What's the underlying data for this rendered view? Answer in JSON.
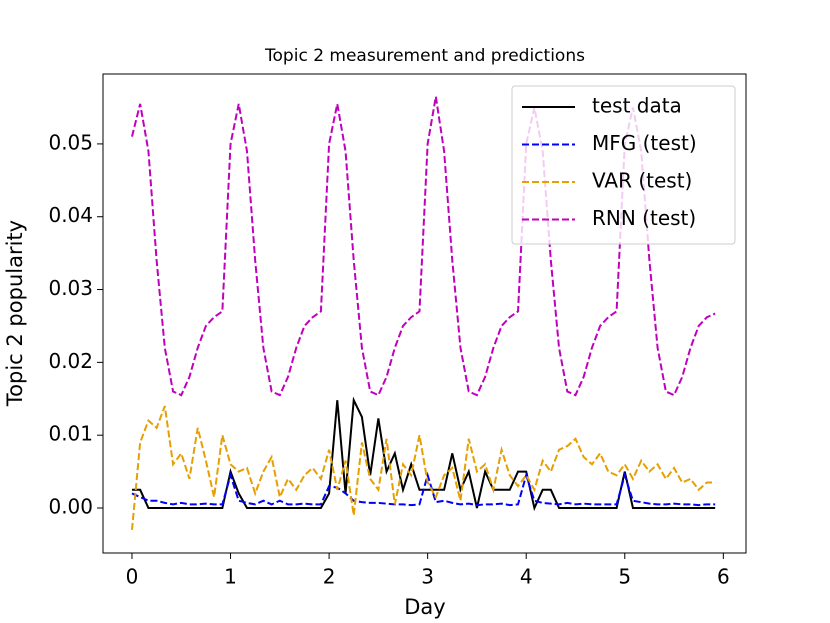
{
  "chart_data": {
    "type": "line",
    "title": "Topic 2 measurement and predictions",
    "xlabel": "Day",
    "ylabel": "Topic 2 popularity",
    "x": [
      0,
      0.083,
      0.167,
      0.25,
      0.333,
      0.417,
      0.5,
      0.583,
      0.667,
      0.75,
      0.833,
      0.917,
      1,
      1.083,
      1.167,
      1.25,
      1.333,
      1.417,
      1.5,
      1.583,
      1.667,
      1.75,
      1.833,
      1.917,
      2,
      2.083,
      2.167,
      2.25,
      2.333,
      2.417,
      2.5,
      2.583,
      2.667,
      2.75,
      2.833,
      2.917,
      3,
      3.083,
      3.167,
      3.25,
      3.333,
      3.417,
      3.5,
      3.583,
      3.667,
      3.75,
      3.833,
      3.917,
      4,
      4.083,
      4.167,
      4.25,
      4.333,
      4.417,
      4.5,
      4.583,
      4.667,
      4.75,
      4.833,
      4.917,
      5,
      5.083,
      5.167,
      5.25,
      5.333,
      5.417,
      5.5,
      5.583,
      5.667,
      5.75,
      5.833,
      5.917
    ],
    "series": [
      {
        "name": "test data",
        "color": "#000000",
        "dash": false,
        "values": [
          0.0025,
          0.0025,
          0,
          0,
          0,
          0,
          0,
          0,
          0,
          0,
          0,
          0,
          0.005,
          0.002,
          0,
          0,
          0,
          0,
          0,
          0,
          0,
          0,
          0,
          0,
          0.002,
          0.0148,
          0.002,
          0.0148,
          0.0125,
          0.0045,
          0.0123,
          0.005,
          0.0075,
          0.0025,
          0.006,
          0.0025,
          0.0025,
          0.0025,
          0.0025,
          0.0075,
          0.0025,
          0.005,
          0,
          0.005,
          0.0025,
          0.0025,
          0.0025,
          0.005,
          0.005,
          0,
          0.0025,
          0.0025,
          0,
          0,
          0,
          0,
          0,
          0,
          0,
          0,
          0.005,
          0,
          0,
          0,
          0,
          0,
          0,
          0,
          0,
          0,
          0,
          0
        ]
      },
      {
        "name": "MFG (test)",
        "color": "#0000ff",
        "dash": true,
        "values": [
          0.002,
          0.0015,
          0.001,
          0.001,
          0.0007,
          0.0005,
          0.0007,
          0.0005,
          0.0005,
          0.0006,
          0.0005,
          0.0005,
          0.0045,
          0.001,
          0.0007,
          0.0005,
          0.001,
          0.0005,
          0.001,
          0.0005,
          0.0005,
          0.0006,
          0.0005,
          0.0005,
          0.003,
          0.0028,
          0.002,
          0.001,
          0.0008,
          0.0007,
          0.0007,
          0.0006,
          0.0005,
          0.0005,
          0.0004,
          0.0005,
          0.0045,
          0.0008,
          0.001,
          0.0007,
          0.0005,
          0.0006,
          0.0004,
          0.0005,
          0.0005,
          0.0006,
          0.0004,
          0.0005,
          0.0045,
          0.001,
          0.0007,
          0.0006,
          0.0005,
          0.0007,
          0.0005,
          0.0006,
          0.0005,
          0.0005,
          0.0005,
          0.0005,
          0.0045,
          0.001,
          0.0008,
          0.0006,
          0.0005,
          0.0005,
          0.0006,
          0.0005,
          0.0005,
          0.0004,
          0.0005,
          0.0005
        ]
      },
      {
        "name": "VAR (test)",
        "color": "#e69f00",
        "dash": true,
        "values": [
          -0.003,
          0.009,
          0.012,
          0.011,
          0.014,
          0.006,
          0.0075,
          0.004,
          0.011,
          0.0065,
          0.0015,
          0.01,
          0.006,
          0.005,
          0.0055,
          0.002,
          0.005,
          0.007,
          0.0015,
          0.004,
          0.0025,
          0.0045,
          0.0055,
          0.004,
          0.008,
          0.0025,
          0.0065,
          -0.001,
          0.009,
          0.004,
          0.0025,
          0.0095,
          0.0005,
          0.006,
          0.0045,
          0.01,
          0.0035,
          0.0015,
          0.0045,
          0.0055,
          0.001,
          0.0095,
          0.005,
          0.006,
          0.0025,
          0.008,
          0.0045,
          0.003,
          0.0045,
          0.0025,
          0.0065,
          0.005,
          0.008,
          0.0085,
          0.0095,
          0.007,
          0.006,
          0.0075,
          0.005,
          0.0045,
          0.006,
          0.004,
          0.0065,
          0.005,
          0.006,
          0.004,
          0.0055,
          0.0035,
          0.004,
          0.0025,
          0.0035,
          0.0035
        ]
      },
      {
        "name": "RNN (test)",
        "color": "#bf00bf",
        "dash": true,
        "values": [
          0.051,
          0.0555,
          0.049,
          0.034,
          0.022,
          0.016,
          0.0155,
          0.018,
          0.022,
          0.025,
          0.0262,
          0.027,
          0.05,
          0.0555,
          0.049,
          0.034,
          0.022,
          0.016,
          0.0155,
          0.018,
          0.022,
          0.025,
          0.0262,
          0.027,
          0.05,
          0.0555,
          0.049,
          0.034,
          0.022,
          0.016,
          0.0155,
          0.018,
          0.022,
          0.025,
          0.0262,
          0.027,
          0.05,
          0.0565,
          0.049,
          0.034,
          0.022,
          0.016,
          0.0155,
          0.018,
          0.022,
          0.025,
          0.0262,
          0.027,
          0.05,
          0.055,
          0.049,
          0.034,
          0.022,
          0.016,
          0.0155,
          0.018,
          0.022,
          0.025,
          0.0262,
          0.027,
          0.05,
          0.055,
          0.049,
          0.034,
          0.022,
          0.016,
          0.0155,
          0.018,
          0.022,
          0.025,
          0.0262,
          0.0267
        ]
      }
    ],
    "xlim": [
      -0.294,
      6.23
    ],
    "ylim": [
      -0.00618,
      0.0596
    ],
    "xticks": [
      0,
      1,
      2,
      3,
      4,
      5,
      6
    ],
    "yticks": [
      {
        "value": 0,
        "label": "0.00"
      },
      {
        "value": 0.01,
        "label": "0.01"
      },
      {
        "value": 0.02,
        "label": "0.02"
      },
      {
        "value": 0.03,
        "label": "0.03"
      },
      {
        "value": 0.04,
        "label": "0.04"
      },
      {
        "value": 0.05,
        "label": "0.05"
      }
    ],
    "legend": "upper right",
    "grid": false
  }
}
